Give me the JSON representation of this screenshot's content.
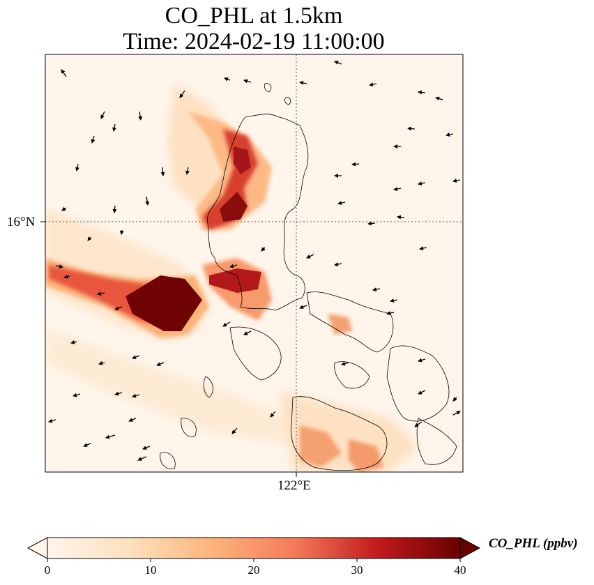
{
  "title": {
    "line1": "CO_PHL at 1.5km",
    "line2": "Time: 2024-02-19 11:00:00"
  },
  "map": {
    "lat_label": "16°N",
    "lon_label": "122°E",
    "colormap": [
      "#fff5eb",
      "#fee6ce",
      "#fdd0a2",
      "#fdae6b",
      "#fd8d3c",
      "#f16913",
      "#d94801",
      "#a63603",
      "#7f2704"
    ]
  },
  "colorbar": {
    "label": "CO_PHL (ppbv)",
    "ticks": [
      "0",
      "10",
      "20",
      "30",
      "40"
    ],
    "colors": [
      "#fff5eb",
      "#fdd7a8",
      "#fca96d",
      "#f06a47",
      "#b70f1c",
      "#6b0000"
    ]
  }
}
